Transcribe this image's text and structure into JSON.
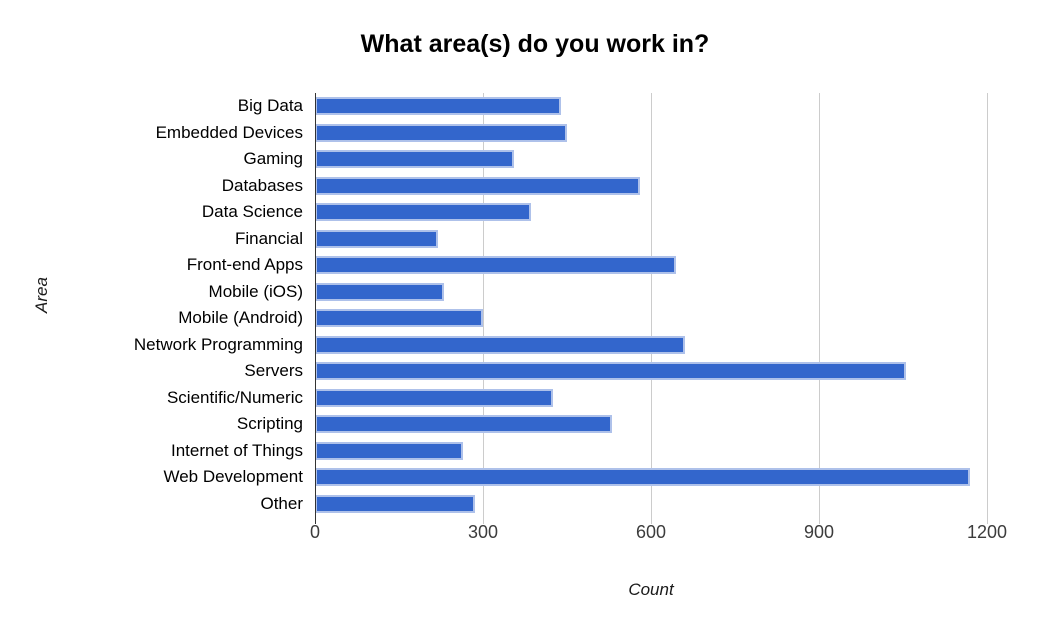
{
  "chart_data": {
    "type": "bar",
    "orientation": "horizontal",
    "title": "What area(s) do you work in?",
    "xlabel": "Count",
    "ylabel": "Area",
    "xlim": [
      0,
      1200
    ],
    "xticks": [
      0,
      300,
      600,
      900,
      1200
    ],
    "grid": true,
    "legend": "none",
    "categories": [
      "Big Data",
      "Embedded Devices",
      "Gaming",
      "Databases",
      "Data Science",
      "Financial",
      "Front-end Apps",
      "Mobile (iOS)",
      "Mobile (Android)",
      "Network Programming",
      "Servers",
      "Scientific/Numeric",
      "Scripting",
      "Internet of Things",
      "Web Development",
      "Other"
    ],
    "values": [
      440,
      450,
      355,
      580,
      385,
      220,
      645,
      230,
      300,
      660,
      1055,
      425,
      530,
      265,
      1170,
      285
    ],
    "colors": {
      "bar_fill": "#3366cc",
      "bar_stroke": "#aec1ea",
      "gridline": "#cccccc",
      "axis_line": "#333333",
      "tick_label": "#3c3c3c",
      "title": "#000000"
    }
  }
}
